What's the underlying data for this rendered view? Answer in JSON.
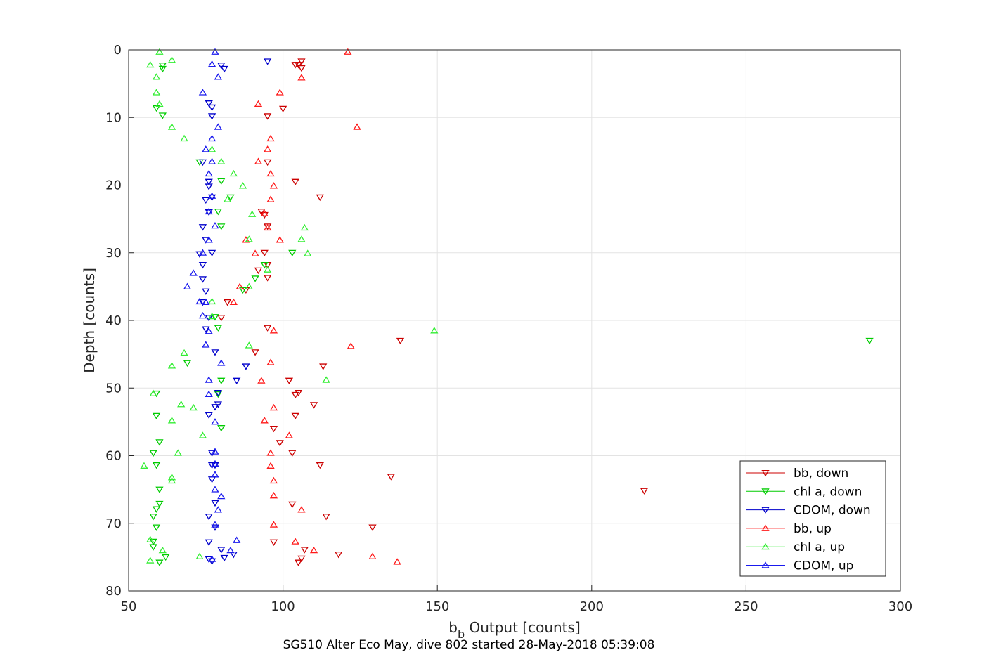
{
  "chart_data": {
    "type": "scatter",
    "title": "",
    "footer": "SG510 Alter Eco May, dive 802 started 28-May-2018 05:39:08",
    "xlabel": "b",
    "xlabel_sub": "b",
    "xlabel_rest": " Output [counts]",
    "ylabel": "Depth [counts]",
    "xlim": [
      50,
      300
    ],
    "ylim": [
      0,
      80
    ],
    "y_reversed": true,
    "xticks": [
      50,
      100,
      150,
      200,
      250,
      300
    ],
    "yticks": [
      0,
      10,
      20,
      30,
      40,
      50,
      60,
      70,
      80
    ],
    "grid": true,
    "legend_position": "bottom-right",
    "series": [
      {
        "name": "bb, down",
        "color": "#cc0000",
        "marker": "triangle-down",
        "points": [
          [
            106,
            1.7
          ],
          [
            104,
            2.2
          ],
          [
            105,
            2.2
          ],
          [
            106,
            2.7
          ],
          [
            100,
            8.7
          ],
          [
            95,
            9.8
          ],
          [
            95,
            16.6
          ],
          [
            104,
            19.5
          ],
          [
            112,
            21.8
          ],
          [
            93,
            23.9
          ],
          [
            94,
            24.4
          ],
          [
            95,
            26.1
          ],
          [
            94,
            30.0
          ],
          [
            95,
            31.8
          ],
          [
            92,
            32.6
          ],
          [
            95,
            33.7
          ],
          [
            88,
            35.5
          ],
          [
            82,
            37.3
          ],
          [
            80,
            39.6
          ],
          [
            95,
            41.1
          ],
          [
            138,
            43.0
          ],
          [
            91,
            44.7
          ],
          [
            113,
            46.8
          ],
          [
            102,
            48.9
          ],
          [
            105,
            50.7
          ],
          [
            104,
            51.0
          ],
          [
            110,
            52.5
          ],
          [
            104,
            54.1
          ],
          [
            97,
            56.0
          ],
          [
            99,
            58.1
          ],
          [
            103,
            59.6
          ],
          [
            112,
            61.4
          ],
          [
            135,
            63.1
          ],
          [
            217,
            65.2
          ],
          [
            103,
            67.2
          ],
          [
            114,
            69.0
          ],
          [
            129,
            70.6
          ],
          [
            97,
            72.8
          ],
          [
            107,
            73.9
          ],
          [
            118,
            74.6
          ],
          [
            106,
            75.2
          ],
          [
            105,
            75.8
          ]
        ]
      },
      {
        "name": "chl a, down",
        "color": "#00cc00",
        "marker": "triangle-down",
        "points": [
          [
            61,
            2.3
          ],
          [
            61,
            2.8
          ],
          [
            59,
            8.6
          ],
          [
            61,
            9.7
          ],
          [
            73,
            16.6
          ],
          [
            80,
            19.4
          ],
          [
            83,
            21.8
          ],
          [
            79,
            23.9
          ],
          [
            80,
            26.1
          ],
          [
            103,
            30.0
          ],
          [
            94,
            31.8
          ],
          [
            91,
            33.8
          ],
          [
            87,
            35.5
          ],
          [
            78,
            39.5
          ],
          [
            79,
            41.1
          ],
          [
            290,
            43.0
          ],
          [
            69,
            46.3
          ],
          [
            80,
            48.9
          ],
          [
            59,
            50.8
          ],
          [
            79,
            50.9
          ],
          [
            59,
            54.1
          ],
          [
            80,
            55.9
          ],
          [
            60,
            58.0
          ],
          [
            58,
            59.6
          ],
          [
            59,
            61.4
          ],
          [
            60,
            65.0
          ],
          [
            60,
            67.1
          ],
          [
            59,
            67.9
          ],
          [
            58,
            69.0
          ],
          [
            59,
            70.6
          ],
          [
            58,
            72.7
          ],
          [
            58,
            73.5
          ],
          [
            62,
            75.0
          ],
          [
            60,
            75.8
          ]
        ]
      },
      {
        "name": "CDOM, down",
        "color": "#0000cc",
        "marker": "triangle-down",
        "points": [
          [
            95,
            1.7
          ],
          [
            80,
            2.3
          ],
          [
            81,
            2.8
          ],
          [
            76,
            7.9
          ],
          [
            77,
            8.5
          ],
          [
            77,
            9.8
          ],
          [
            74,
            16.6
          ],
          [
            76,
            19.5
          ],
          [
            76,
            20.2
          ],
          [
            77,
            21.8
          ],
          [
            75,
            22.2
          ],
          [
            76,
            24.0
          ],
          [
            74,
            26.2
          ],
          [
            75,
            28.1
          ],
          [
            77,
            30.0
          ],
          [
            73,
            30.2
          ],
          [
            74,
            31.8
          ],
          [
            74,
            33.9
          ],
          [
            75,
            35.7
          ],
          [
            74,
            37.3
          ],
          [
            76,
            39.6
          ],
          [
            75,
            41.3
          ],
          [
            78,
            44.7
          ],
          [
            88,
            46.8
          ],
          [
            85,
            48.9
          ],
          [
            79,
            50.7
          ],
          [
            79,
            52.4
          ],
          [
            78,
            52.8
          ],
          [
            76,
            54.0
          ],
          [
            77,
            59.6
          ],
          [
            77,
            61.4
          ],
          [
            78,
            61.4
          ],
          [
            77,
            63.5
          ],
          [
            78,
            67.0
          ],
          [
            76,
            69.0
          ],
          [
            78,
            70.6
          ],
          [
            76,
            72.8
          ],
          [
            80,
            73.9
          ],
          [
            84,
            74.6
          ],
          [
            81,
            75.1
          ],
          [
            76,
            75.3
          ],
          [
            77,
            75.6
          ]
        ]
      },
      {
        "name": "bb, up",
        "color": "#ff1a1a",
        "marker": "triangle-up",
        "points": [
          [
            121,
            0.3
          ],
          [
            99,
            6.3
          ],
          [
            92,
            8.0
          ],
          [
            124,
            11.4
          ],
          [
            96,
            13.1
          ],
          [
            95,
            14.7
          ],
          [
            92,
            16.5
          ],
          [
            96,
            18.3
          ],
          [
            97,
            20.1
          ],
          [
            96,
            22.1
          ],
          [
            95,
            26.3
          ],
          [
            99,
            28.1
          ],
          [
            88,
            28.1
          ],
          [
            91,
            30.1
          ],
          [
            94,
            24.2
          ],
          [
            86,
            35.0
          ],
          [
            84,
            37.3
          ],
          [
            97,
            41.5
          ],
          [
            122,
            43.8
          ],
          [
            96,
            46.2
          ],
          [
            93,
            48.9
          ],
          [
            97,
            52.9
          ],
          [
            94,
            54.8
          ],
          [
            102,
            57.0
          ],
          [
            96,
            59.6
          ],
          [
            96,
            61.5
          ],
          [
            97,
            63.7
          ],
          [
            97,
            65.9
          ],
          [
            106,
            68.0
          ],
          [
            97,
            70.2
          ],
          [
            104,
            72.7
          ],
          [
            110,
            74.0
          ],
          [
            129,
            74.9
          ],
          [
            137,
            75.7
          ],
          [
            106,
            4.1
          ]
        ]
      },
      {
        "name": "chl a, up",
        "color": "#33ee33",
        "marker": "triangle-up",
        "points": [
          [
            60,
            0.3
          ],
          [
            64,
            1.5
          ],
          [
            57,
            2.2
          ],
          [
            59,
            4.0
          ],
          [
            59,
            6.3
          ],
          [
            60,
            8.0
          ],
          [
            64,
            11.4
          ],
          [
            68,
            13.1
          ],
          [
            77,
            14.7
          ],
          [
            80,
            16.5
          ],
          [
            84,
            18.3
          ],
          [
            87,
            20.1
          ],
          [
            82,
            22.1
          ],
          [
            90,
            24.3
          ],
          [
            107,
            26.3
          ],
          [
            89,
            28.0
          ],
          [
            106,
            28.0
          ],
          [
            108,
            30.1
          ],
          [
            95,
            32.5
          ],
          [
            89,
            35.0
          ],
          [
            77,
            37.2
          ],
          [
            77,
            39.4
          ],
          [
            149,
            41.5
          ],
          [
            89,
            43.7
          ],
          [
            68,
            44.8
          ],
          [
            64,
            46.7
          ],
          [
            114,
            48.8
          ],
          [
            58,
            50.8
          ],
          [
            67,
            52.4
          ],
          [
            71,
            52.9
          ],
          [
            64,
            54.8
          ],
          [
            74,
            57.0
          ],
          [
            66,
            59.6
          ],
          [
            55,
            61.5
          ],
          [
            64,
            63.2
          ],
          [
            64,
            63.7
          ],
          [
            73,
            74.9
          ],
          [
            61,
            74.0
          ],
          [
            57,
            75.5
          ],
          [
            57,
            72.4
          ]
        ]
      },
      {
        "name": "CDOM, up",
        "color": "#1a1aee",
        "marker": "triangle-up",
        "points": [
          [
            78,
            0.3
          ],
          [
            77,
            2.1
          ],
          [
            79,
            4.0
          ],
          [
            74,
            6.3
          ],
          [
            79,
            11.4
          ],
          [
            77,
            13.1
          ],
          [
            75,
            14.7
          ],
          [
            77,
            16.5
          ],
          [
            76,
            18.3
          ],
          [
            77,
            21.6
          ],
          [
            76,
            23.9
          ],
          [
            78,
            26.0
          ],
          [
            76,
            28.1
          ],
          [
            74,
            30.0
          ],
          [
            71,
            33.0
          ],
          [
            69,
            35.0
          ],
          [
            73,
            37.2
          ],
          [
            75,
            37.3
          ],
          [
            74,
            39.3
          ],
          [
            76,
            41.6
          ],
          [
            75,
            43.6
          ],
          [
            80,
            46.3
          ],
          [
            76,
            48.8
          ],
          [
            76,
            50.9
          ],
          [
            78,
            55.0
          ],
          [
            78,
            59.4
          ],
          [
            78,
            61.2
          ],
          [
            78,
            62.8
          ],
          [
            78,
            65.0
          ],
          [
            80,
            66.0
          ],
          [
            79,
            68.0
          ],
          [
            78,
            70.2
          ],
          [
            85,
            72.5
          ],
          [
            83,
            74.0
          ],
          [
            77,
            75.3
          ]
        ]
      }
    ]
  }
}
